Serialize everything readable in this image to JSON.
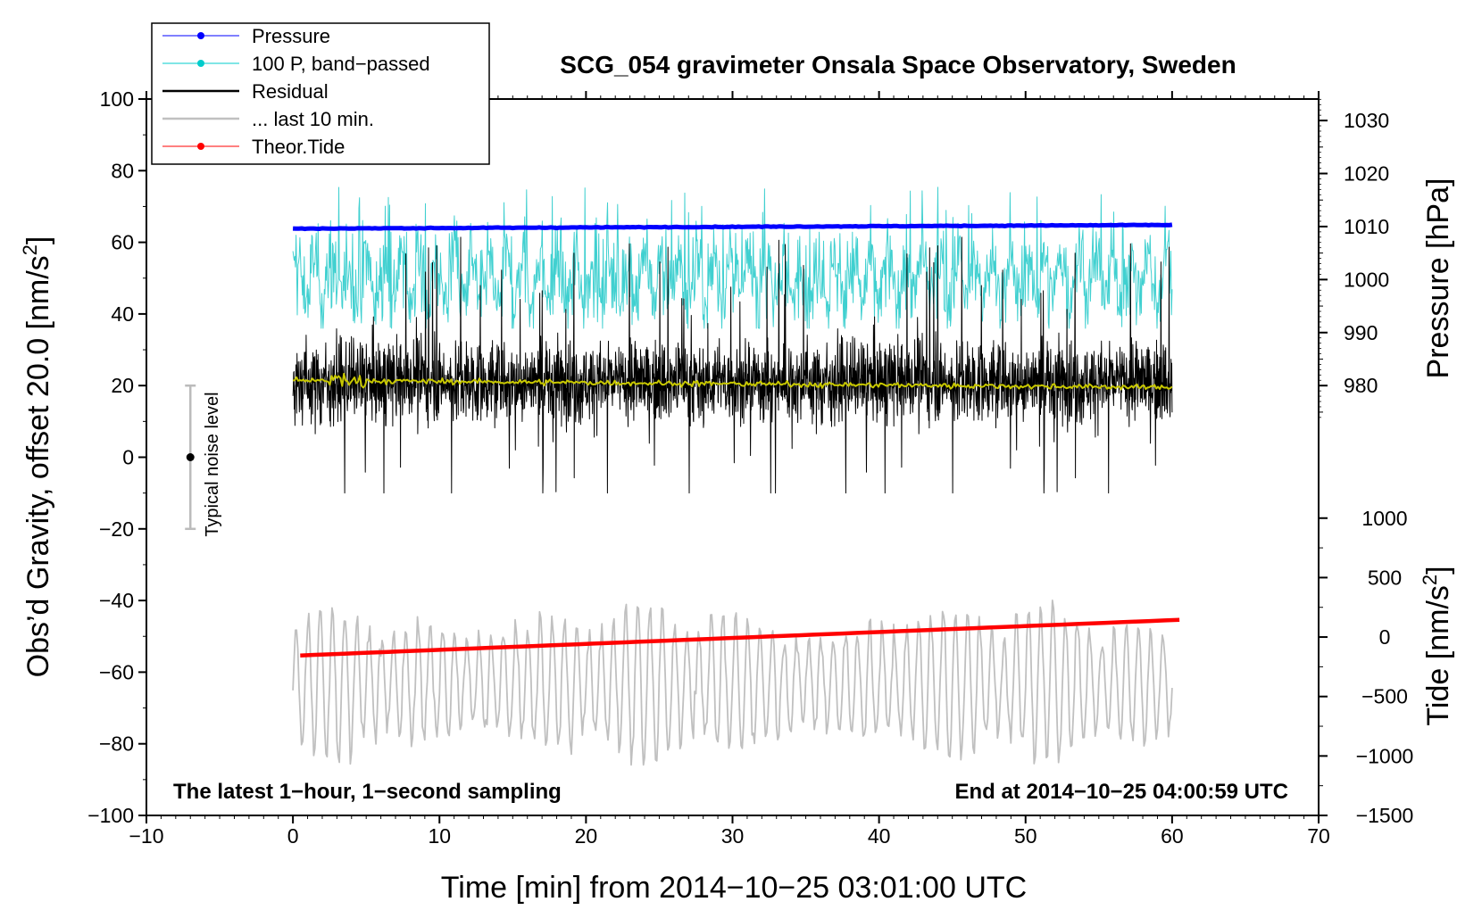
{
  "chart_data": {
    "type": "line",
    "title": "SCG_054 gravimeter Onsala Space Observatory, Sweden",
    "xlabel": "Time [min] from 2014−10−25 03:01:00 UTC",
    "ylabel": "Obs’d Gravity, offset 20.0 [nm/s²]",
    "ylabel_parts": [
      "Obs’d Gravity, offset 20.0 [nm/s",
      "2",
      "]"
    ],
    "xlim": [
      -10,
      70
    ],
    "ylim": [
      -100,
      100
    ],
    "x_ticks": [
      -10,
      0,
      10,
      20,
      30,
      40,
      50,
      60,
      70
    ],
    "x_tick_labels": [
      "−10",
      "0",
      "10",
      "20",
      "30",
      "40",
      "50",
      "60",
      "70"
    ],
    "y_ticks": [
      -100,
      -80,
      -60,
      -40,
      -20,
      0,
      20,
      40,
      60,
      80,
      100
    ],
    "y_tick_labels": [
      "−100",
      "−80",
      "−60",
      "−40",
      "−20",
      "0",
      "20",
      "40",
      "60",
      "80",
      "100"
    ],
    "pressure_axis": {
      "label": "Pressure [hPa]",
      "ticks": [
        980,
        990,
        1000,
        1010,
        1020,
        1030
      ],
      "tick_labels": [
        "980",
        "990",
        "1000",
        "1010",
        "1020",
        "1030"
      ],
      "gravity_at_980": 20,
      "gravity_at_1030": 94
    },
    "tide_axis": {
      "label_parts": [
        "Tide [nm/s",
        "2",
        "]"
      ],
      "ticks": [
        -1500,
        -1000,
        -500,
        0,
        500,
        1000
      ],
      "tick_labels": [
        "−1500",
        "−1000",
        "−500",
        "0",
        "500",
        "1000"
      ],
      "gravity_at_-1500": -100,
      "gravity_at_1000": -17
    },
    "legend": [
      {
        "label": "Pressure",
        "color": "#0000ff",
        "marker": true
      },
      {
        "label": "100 P, band−passed",
        "color": "#00cccc",
        "marker": true
      },
      {
        "label": "Residual",
        "color": "#000000",
        "marker": false
      },
      {
        "label": "... last 10 min.",
        "color": "#c0c0c0",
        "marker": false
      },
      {
        "label": "Theor.Tide",
        "color": "#ff0000",
        "marker": true
      }
    ],
    "annotations": {
      "left": "The latest 1−hour, 1−second sampling",
      "right": "End at 2014−10−25 04:00:59 UTC"
    },
    "noise_bar": {
      "label": "Typical noise level",
      "x": -7,
      "center": 0,
      "low": -20,
      "high": 20
    },
    "series": [
      {
        "name": "Pressure",
        "color": "#0000ff",
        "x": [
          0,
          60
        ],
        "y_hpa": [
          1009.6,
          1010.3
        ]
      },
      {
        "name": "100 P, band−passed",
        "color": "#40d0d0",
        "x_range": [
          0,
          60
        ],
        "y_center": 50,
        "y_spread": 8,
        "y_peaks_max": 76
      },
      {
        "name": "Residual",
        "color": "#000000",
        "x_range": [
          0,
          60
        ],
        "y_center": 21,
        "y_min": -10,
        "y_max": 62
      },
      {
        "name": "Residual smoothed",
        "color": "#c8c800",
        "x": [
          0,
          60
        ],
        "y": [
          21.5,
          19.5
        ]
      },
      {
        "name": "... last 10 min.",
        "color": "#c0c0c0",
        "x_range": [
          0,
          60
        ],
        "y_center": -63,
        "y_min": -88,
        "y_max": -33
      },
      {
        "name": "Theor.Tide",
        "color": "#ff0000",
        "x": [
          0.5,
          60.5
        ],
        "y_tide": [
          -155,
          145
        ]
      }
    ]
  }
}
